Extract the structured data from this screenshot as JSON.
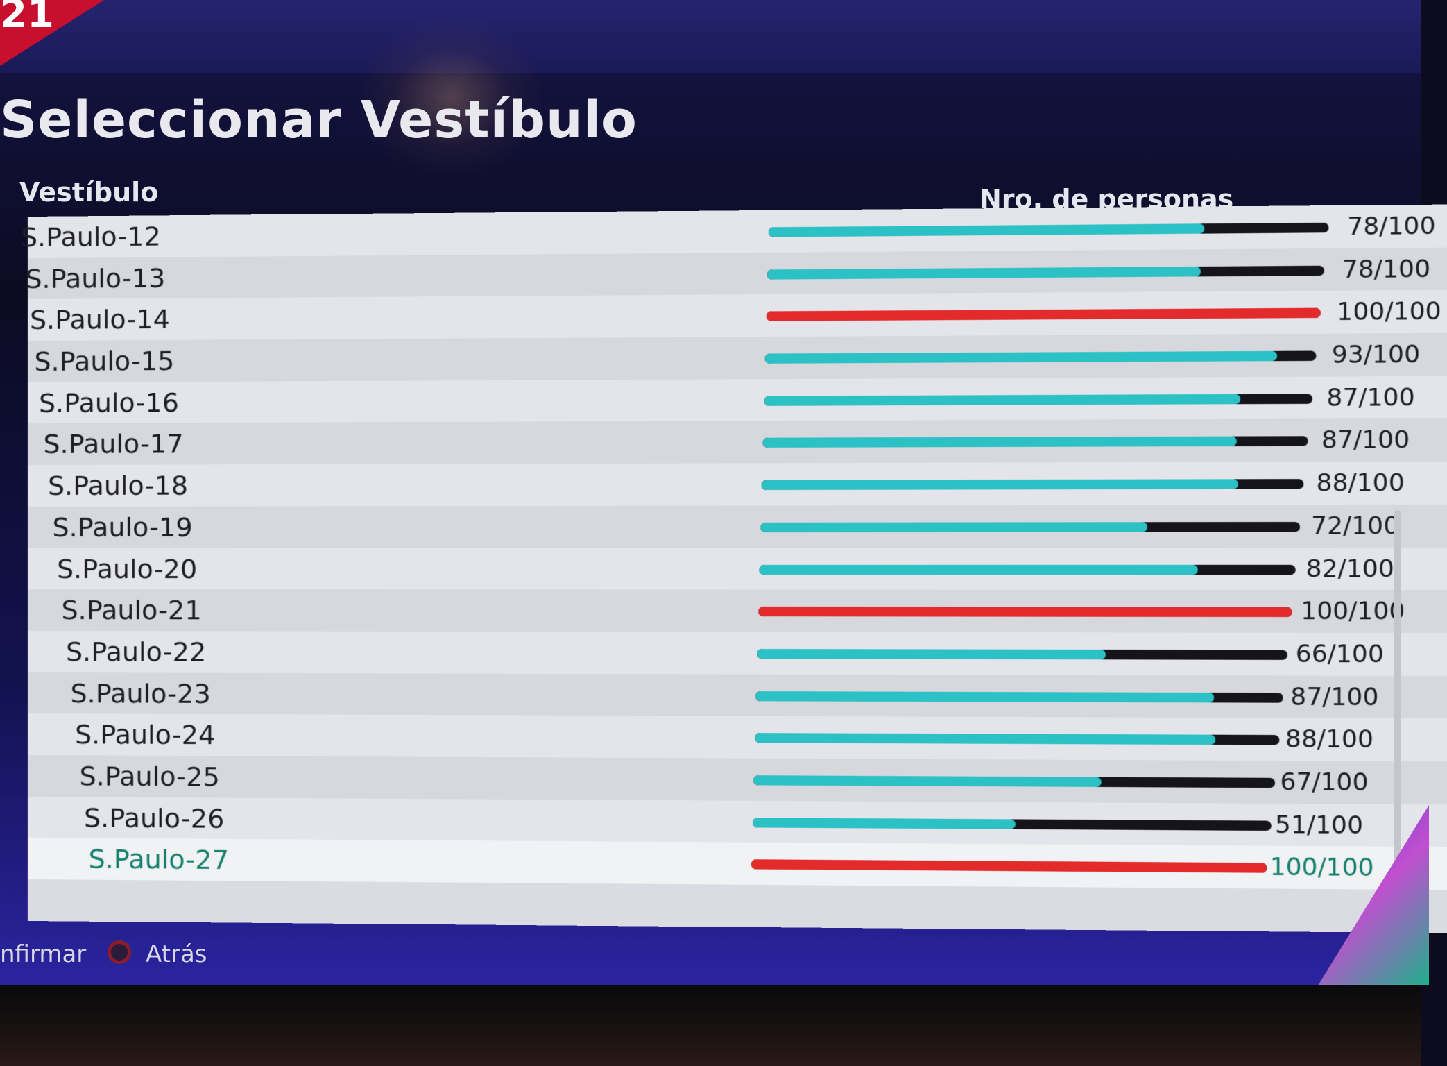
{
  "header": {
    "corner_badge": "21",
    "title": "Seleccionar Vestíbulo"
  },
  "columns": {
    "lobby": "Vestíbulo",
    "people": "Nro. de personas"
  },
  "colors": {
    "bar_normal": "#2cc1c4",
    "bar_full": "#e32b2b",
    "selected_text": "#16806e"
  },
  "lobbies": [
    {
      "name": "S.Paulo-12",
      "count": "78/100",
      "fill": 0.78
    },
    {
      "name": "S.Paulo-13",
      "count": "78/100",
      "fill": 0.78
    },
    {
      "name": "S.Paulo-14",
      "count": "100/100",
      "fill": 1.0
    },
    {
      "name": "S.Paulo-15",
      "count": "93/100",
      "fill": 0.93
    },
    {
      "name": "S.Paulo-16",
      "count": "87/100",
      "fill": 0.87
    },
    {
      "name": "S.Paulo-17",
      "count": "87/100",
      "fill": 0.87
    },
    {
      "name": "S.Paulo-18",
      "count": "88/100",
      "fill": 0.88
    },
    {
      "name": "S.Paulo-19",
      "count": "72/100",
      "fill": 0.72
    },
    {
      "name": "S.Paulo-20",
      "count": "82/100",
      "fill": 0.82
    },
    {
      "name": "S.Paulo-21",
      "count": "100/100",
      "fill": 1.0
    },
    {
      "name": "S.Paulo-22",
      "count": "66/100",
      "fill": 0.66
    },
    {
      "name": "S.Paulo-23",
      "count": "87/100",
      "fill": 0.87
    },
    {
      "name": "S.Paulo-24",
      "count": "88/100",
      "fill": 0.88
    },
    {
      "name": "S.Paulo-25",
      "count": "67/100",
      "fill": 0.67
    },
    {
      "name": "S.Paulo-26",
      "count": "51/100",
      "fill": 0.51
    },
    {
      "name": "S.Paulo-27",
      "count": "100/100",
      "fill": 1.0,
      "selected": true
    }
  ],
  "footer": {
    "confirm_label": "nfirmar",
    "back_icon": "circle-button-icon",
    "back_label": "Atrás"
  }
}
